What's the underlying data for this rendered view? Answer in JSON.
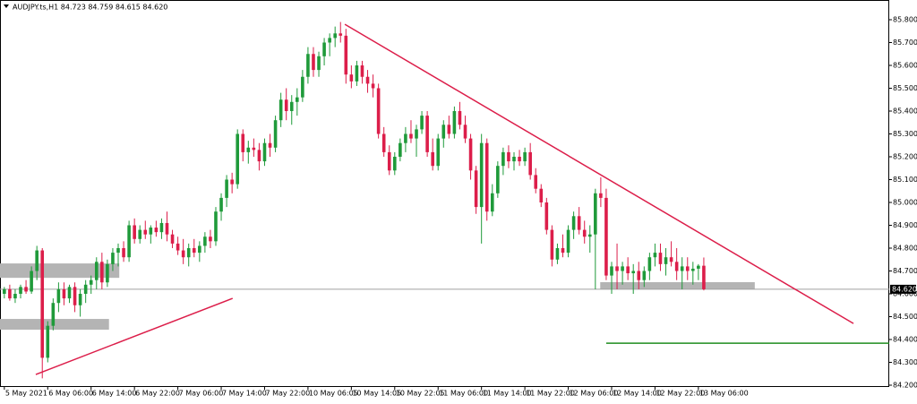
{
  "chart_data": {
    "type": "candlestick",
    "title": "AUDJPY.ts,H1  84.723 84.759 84.615 84.620",
    "up_color": "#1f9a3a",
    "down_color": "#dc1e4a",
    "xlim": [
      -0.8,
      163.2
    ],
    "ylim": [
      84.2,
      85.8
    ],
    "yticks": [
      {
        "value": 84.2,
        "label": "84.200"
      },
      {
        "value": 84.3,
        "label": "84.300"
      },
      {
        "value": 84.4,
        "label": "84.400"
      },
      {
        "value": 84.5,
        "label": "84.500"
      },
      {
        "value": 84.6,
        "label": "84.600"
      },
      {
        "value": 84.7,
        "label": "84.700"
      },
      {
        "value": 84.8,
        "label": "84.800"
      },
      {
        "value": 84.9,
        "label": "84.900"
      },
      {
        "value": 85.0,
        "label": "85.000"
      },
      {
        "value": 85.1,
        "label": "85.100"
      },
      {
        "value": 85.2,
        "label": "85.200"
      },
      {
        "value": 85.3,
        "label": "85.300"
      },
      {
        "value": 85.4,
        "label": "85.400"
      },
      {
        "value": 85.5,
        "label": "85.500"
      },
      {
        "value": 85.6,
        "label": "85.600"
      },
      {
        "value": 85.7,
        "label": "85.700"
      },
      {
        "value": 85.8,
        "label": "85.800"
      }
    ],
    "xticks": [
      {
        "value": 0,
        "label": "5 May 2021"
      },
      {
        "value": 8,
        "label": "6 May 06:00"
      },
      {
        "value": 16,
        "label": "6 May 14:00"
      },
      {
        "value": 24,
        "label": "6 May 22:00"
      },
      {
        "value": 32,
        "label": "7 May 06:00"
      },
      {
        "value": 40,
        "label": "7 May 14:00"
      },
      {
        "value": 48,
        "label": "7 May 22:00"
      },
      {
        "value": 56,
        "label": "10 May 06:05"
      },
      {
        "value": 64,
        "label": "10 May 14:05"
      },
      {
        "value": 72,
        "label": "10 May 22:05"
      },
      {
        "value": 80,
        "label": "11 May 06:00"
      },
      {
        "value": 88,
        "label": "11 May 14:00"
      },
      {
        "value": 96,
        "label": "11 May 22:00"
      },
      {
        "value": 104,
        "label": "12 May 06:00"
      },
      {
        "value": 112,
        "label": "12 May 14:00"
      },
      {
        "value": 120,
        "label": "12 May 22:00"
      },
      {
        "value": 128,
        "label": "13 May 06:00"
      }
    ],
    "current": {
      "value": 84.62,
      "label": "84.620"
    },
    "zones": [
      {
        "x": [
          -0.8,
          21.2
        ],
        "y": [
          84.67,
          84.733
        ]
      },
      {
        "x": [
          -0.8,
          19.3
        ],
        "y": [
          84.443,
          84.49
        ]
      },
      {
        "x": [
          109.9,
          138.4
        ],
        "y": [
          84.62,
          84.651
        ]
      }
    ],
    "lines": [
      {
        "x": [
          62.8,
          156.6
        ],
        "y": [
          85.78,
          84.47
        ],
        "color": "#dc1e4a"
      },
      {
        "x": [
          5.8,
          42.1
        ],
        "y": [
          84.247,
          84.58
        ],
        "color": "#dc1e4a"
      },
      {
        "x": [
          111.0,
          163.2
        ],
        "y": [
          84.384,
          84.384
        ],
        "color": "#1e8c1e"
      }
    ],
    "candles": [
      [
        84.6,
        84.63,
        84.58,
        84.62
      ],
      [
        84.62,
        84.64,
        84.57,
        84.58
      ],
      [
        84.58,
        84.62,
        84.56,
        84.6
      ],
      [
        84.6,
        84.64,
        84.58,
        84.63
      ],
      [
        84.63,
        84.66,
        84.6,
        84.61
      ],
      [
        84.61,
        84.72,
        84.6,
        84.7
      ],
      [
        84.7,
        84.81,
        84.66,
        84.79
      ],
      [
        84.79,
        84.8,
        84.23,
        84.32
      ],
      [
        84.32,
        84.48,
        84.3,
        84.46
      ],
      [
        84.46,
        84.58,
        84.44,
        84.56
      ],
      [
        84.56,
        84.65,
        84.52,
        84.62
      ],
      [
        84.62,
        84.65,
        84.55,
        84.58
      ],
      [
        84.58,
        84.64,
        84.56,
        84.63
      ],
      [
        84.63,
        84.65,
        84.52,
        84.55
      ],
      [
        84.55,
        84.62,
        84.5,
        84.6
      ],
      [
        84.6,
        84.66,
        84.56,
        84.64
      ],
      [
        84.64,
        84.68,
        84.6,
        84.66
      ],
      [
        84.66,
        84.76,
        84.62,
        84.74
      ],
      [
        84.74,
        84.78,
        84.62,
        84.65
      ],
      [
        84.65,
        84.75,
        84.63,
        84.73
      ],
      [
        84.73,
        84.8,
        84.7,
        84.78
      ],
      [
        84.78,
        84.82,
        84.72,
        84.8
      ],
      [
        84.8,
        84.83,
        84.74,
        84.76
      ],
      [
        84.76,
        84.92,
        84.74,
        84.9
      ],
      [
        84.9,
        84.93,
        84.82,
        84.84
      ],
      [
        84.84,
        84.9,
        84.82,
        84.88
      ],
      [
        84.88,
        84.92,
        84.84,
        84.86
      ],
      [
        84.86,
        84.9,
        84.82,
        84.89
      ],
      [
        84.89,
        84.92,
        84.85,
        84.87
      ],
      [
        84.87,
        84.93,
        84.84,
        84.91
      ],
      [
        84.91,
        84.96,
        84.83,
        84.86
      ],
      [
        84.86,
        84.88,
        84.8,
        84.82
      ],
      [
        84.82,
        84.85,
        84.77,
        84.79
      ],
      [
        84.79,
        84.84,
        84.73,
        84.76
      ],
      [
        84.76,
        84.82,
        84.72,
        84.8
      ],
      [
        84.8,
        84.84,
        84.76,
        84.78
      ],
      [
        84.78,
        84.83,
        84.74,
        84.81
      ],
      [
        84.81,
        84.87,
        84.78,
        84.85
      ],
      [
        84.85,
        84.88,
        84.8,
        84.83
      ],
      [
        84.83,
        84.98,
        84.81,
        84.96
      ],
      [
        84.96,
        85.04,
        84.92,
        85.02
      ],
      [
        85.02,
        85.12,
        84.98,
        85.1
      ],
      [
        85.1,
        85.13,
        85.04,
        85.08
      ],
      [
        85.08,
        85.32,
        85.06,
        85.3
      ],
      [
        85.3,
        85.32,
        85.18,
        85.22
      ],
      [
        85.22,
        85.27,
        85.17,
        85.24
      ],
      [
        85.24,
        85.28,
        85.2,
        85.23
      ],
      [
        85.23,
        85.26,
        85.14,
        85.18
      ],
      [
        85.18,
        85.28,
        85.16,
        85.26
      ],
      [
        85.26,
        85.3,
        85.2,
        85.24
      ],
      [
        85.24,
        85.38,
        85.22,
        85.36
      ],
      [
        85.36,
        85.48,
        85.33,
        85.45
      ],
      [
        85.45,
        85.5,
        85.36,
        85.4
      ],
      [
        85.4,
        85.47,
        85.34,
        85.44
      ],
      [
        85.44,
        85.5,
        85.38,
        85.46
      ],
      [
        85.46,
        85.58,
        85.44,
        85.55
      ],
      [
        85.55,
        85.68,
        85.52,
        85.65
      ],
      [
        85.65,
        85.68,
        85.55,
        85.58
      ],
      [
        85.58,
        85.66,
        85.55,
        85.64
      ],
      [
        85.64,
        85.72,
        85.6,
        85.7
      ],
      [
        85.7,
        85.74,
        85.64,
        85.72
      ],
      [
        85.72,
        85.77,
        85.68,
        85.74
      ],
      [
        85.74,
        85.79,
        85.7,
        85.73
      ],
      [
        85.73,
        85.76,
        85.52,
        85.56
      ],
      [
        85.56,
        85.6,
        85.5,
        85.53
      ],
      [
        85.53,
        85.62,
        85.51,
        85.6
      ],
      [
        85.6,
        85.62,
        85.52,
        85.55
      ],
      [
        85.55,
        85.58,
        85.48,
        85.52
      ],
      [
        85.52,
        85.56,
        85.46,
        85.5
      ],
      [
        85.5,
        85.52,
        85.28,
        85.3
      ],
      [
        85.3,
        85.33,
        85.2,
        85.22
      ],
      [
        85.22,
        85.25,
        85.12,
        85.14
      ],
      [
        85.14,
        85.22,
        85.12,
        85.2
      ],
      [
        85.2,
        85.28,
        85.18,
        85.26
      ],
      [
        85.26,
        85.33,
        85.22,
        85.3
      ],
      [
        85.3,
        85.36,
        85.26,
        85.28
      ],
      [
        85.28,
        85.34,
        85.2,
        85.32
      ],
      [
        85.32,
        85.4,
        85.3,
        85.38
      ],
      [
        85.38,
        85.4,
        85.2,
        85.22
      ],
      [
        85.22,
        85.28,
        85.14,
        85.16
      ],
      [
        85.16,
        85.3,
        85.14,
        85.28
      ],
      [
        85.28,
        85.36,
        85.24,
        85.34
      ],
      [
        85.34,
        85.38,
        85.28,
        85.3
      ],
      [
        85.3,
        85.42,
        85.28,
        85.4
      ],
      [
        85.4,
        85.44,
        85.32,
        85.34
      ],
      [
        85.34,
        85.38,
        85.26,
        85.28
      ],
      [
        85.28,
        85.3,
        85.1,
        85.14
      ],
      [
        85.14,
        85.16,
        84.95,
        84.98
      ],
      [
        84.98,
        85.3,
        84.82,
        85.26
      ],
      [
        85.26,
        85.28,
        84.92,
        84.96
      ],
      [
        84.96,
        85.08,
        84.94,
        85.04
      ],
      [
        85.04,
        85.18,
        85.02,
        85.16
      ],
      [
        85.16,
        85.24,
        85.12,
        85.22
      ],
      [
        85.22,
        85.25,
        85.15,
        85.18
      ],
      [
        85.18,
        85.22,
        85.14,
        85.2
      ],
      [
        85.2,
        85.23,
        85.16,
        85.18
      ],
      [
        85.18,
        85.24,
        85.16,
        85.22
      ],
      [
        85.22,
        85.26,
        85.1,
        85.12
      ],
      [
        85.12,
        85.15,
        85.04,
        85.06
      ],
      [
        85.06,
        85.08,
        84.98,
        85.0
      ],
      [
        85.0,
        85.02,
        84.86,
        84.88
      ],
      [
        84.88,
        84.9,
        84.72,
        84.75
      ],
      [
        84.75,
        84.82,
        84.73,
        84.8
      ],
      [
        84.8,
        84.86,
        84.76,
        84.78
      ],
      [
        84.78,
        84.9,
        84.76,
        84.88
      ],
      [
        84.88,
        84.96,
        84.84,
        84.94
      ],
      [
        84.94,
        84.98,
        84.86,
        84.88
      ],
      [
        84.88,
        84.92,
        84.82,
        84.85
      ],
      [
        84.85,
        84.9,
        84.78,
        84.86
      ],
      [
        84.86,
        85.06,
        84.62,
        85.04
      ],
      [
        85.04,
        85.11,
        84.98,
        85.02
      ],
      [
        85.02,
        85.06,
        84.66,
        84.68
      ],
      [
        84.68,
        84.74,
        84.6,
        84.72
      ],
      [
        84.72,
        84.82,
        84.62,
        84.7
      ],
      [
        84.7,
        84.74,
        84.64,
        84.72
      ],
      [
        84.72,
        84.76,
        84.66,
        84.69
      ],
      [
        84.69,
        84.73,
        84.6,
        84.7
      ],
      [
        84.7,
        84.74,
        84.62,
        84.66
      ],
      [
        84.66,
        84.72,
        84.63,
        84.7
      ],
      [
        84.7,
        84.78,
        84.66,
        84.76
      ],
      [
        84.76,
        84.82,
        84.72,
        84.78
      ],
      [
        84.78,
        84.82,
        84.7,
        84.73
      ],
      [
        84.73,
        84.8,
        84.68,
        84.76
      ],
      [
        84.76,
        84.83,
        84.72,
        84.74
      ],
      [
        84.74,
        84.8,
        84.66,
        84.7
      ],
      [
        84.7,
        84.76,
        84.62,
        84.72
      ],
      [
        84.72,
        84.76,
        84.66,
        84.7
      ],
      [
        84.7,
        84.74,
        84.64,
        84.71
      ],
      [
        84.71,
        84.73,
        84.66,
        84.723
      ],
      [
        84.723,
        84.759,
        84.615,
        84.62
      ]
    ]
  }
}
